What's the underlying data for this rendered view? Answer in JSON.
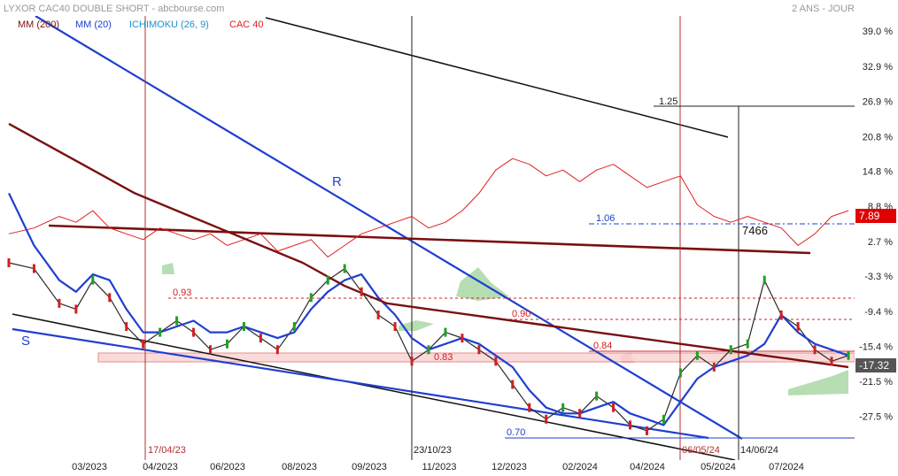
{
  "header": {
    "title": "LYXOR CAC40 DOUBLE SHORT - abcbourse.com",
    "period": "2 ANS - JOUR",
    "legend": [
      {
        "label": "MM (200)",
        "color": "#7a1010"
      },
      {
        "label": "MM (20)",
        "color": "#1f3fd0"
      },
      {
        "label": "ICHIMOKU (26, 9)",
        "color": "#1f8fd0"
      },
      {
        "label": "CAC 40",
        "color": "#e02020"
      }
    ]
  },
  "badges": {
    "cac": {
      "text": "7.89",
      "color": "#e00000"
    },
    "etf": {
      "text": "-17.32",
      "color": "#555555"
    }
  },
  "annotations": {
    "R": "R",
    "S": "S",
    "cac_value": "7466",
    "fib_125": "1.25",
    "fib_106": "1.06",
    "fib_093": "0.93",
    "fib_090": "0.90",
    "fib_084": "0.84",
    "fib_083": "0.83",
    "fib_070": "0.70"
  },
  "vlines": [
    {
      "label": "17/04/23",
      "color": "#b03030"
    },
    {
      "label": "23/10/23",
      "color": "#222222"
    },
    {
      "label": "06/05/24",
      "color": "#b03030"
    },
    {
      "label": "14/06/24",
      "color": "#222222"
    }
  ],
  "chart_data": {
    "type": "line",
    "title": "LYXOR CAC40 DOUBLE SHORT",
    "x_ticks": [
      "03/2023",
      "04/2023",
      "06/2023",
      "08/2023",
      "09/2023",
      "11/2023",
      "12/2023",
      "02/2024",
      "04/2024",
      "05/2024",
      "07/2024"
    ],
    "y_ticks": [
      "39.0 %",
      "32.9 %",
      "26.9 %",
      "20.8 %",
      "14.8 %",
      "8.8 %",
      "2.7 %",
      "-3.3 %",
      "-9.4 %",
      "-15.4 %",
      "-21.5 %",
      "-27.5 %"
    ],
    "y_range": [
      -32,
      41
    ],
    "series": [
      {
        "name": "CAC 40",
        "color": "#e02020",
        "x": [
          0,
          3,
          6,
          8,
          10,
          12,
          14,
          16,
          18,
          20,
          22,
          24,
          26,
          28,
          30,
          32,
          34,
          36,
          38,
          40,
          42,
          44,
          46,
          48,
          50,
          52,
          54,
          56,
          58,
          60,
          62,
          64,
          66,
          68,
          70,
          72,
          74,
          76,
          78,
          80,
          82,
          84,
          86,
          88,
          90,
          92,
          94,
          96,
          98,
          100
        ],
        "y": [
          4,
          5,
          7,
          6,
          8,
          5,
          4,
          3,
          5,
          4,
          3,
          4,
          2,
          3,
          4,
          1,
          2,
          3,
          0,
          2,
          4,
          5,
          6,
          7,
          5,
          6,
          8,
          11,
          15,
          17,
          16,
          14,
          15,
          13,
          15,
          16,
          14,
          12,
          13,
          14,
          9,
          7,
          6,
          7,
          6,
          5,
          2,
          4,
          7,
          8
        ]
      },
      {
        "name": "LYXOR CAC40 DOUBLE SHORT",
        "color": "#2a2a2a",
        "x": [
          0,
          3,
          6,
          8,
          10,
          12,
          14,
          16,
          18,
          20,
          22,
          24,
          26,
          28,
          30,
          32,
          34,
          36,
          38,
          40,
          42,
          44,
          46,
          48,
          50,
          52,
          54,
          56,
          58,
          60,
          62,
          64,
          66,
          68,
          70,
          72,
          74,
          76,
          78,
          80,
          82,
          84,
          86,
          88,
          90,
          92,
          94,
          96,
          98,
          100
        ],
        "y": [
          -1,
          -2,
          -8,
          -9,
          -4,
          -7,
          -12,
          -15,
          -13,
          -11,
          -13,
          -16,
          -15,
          -12,
          -14,
          -16,
          -12,
          -7,
          -4,
          -2,
          -6,
          -10,
          -12,
          -18,
          -16,
          -13,
          -14,
          -16,
          -18,
          -22,
          -26,
          -28,
          -26,
          -27,
          -24,
          -26,
          -29,
          -30,
          -28,
          -20,
          -17,
          -19,
          -16,
          -15,
          -4,
          -10,
          -12,
          -16,
          -18,
          -17
        ]
      },
      {
        "name": "MM (20)",
        "color": "#1f3fd0",
        "x": [
          0,
          3,
          6,
          8,
          10,
          12,
          14,
          16,
          18,
          20,
          22,
          24,
          26,
          28,
          30,
          32,
          34,
          36,
          38,
          40,
          42,
          44,
          46,
          48,
          50,
          52,
          54,
          56,
          58,
          60,
          62,
          64,
          66,
          68,
          70,
          72,
          74,
          76,
          78,
          80,
          82,
          84,
          86,
          88,
          90,
          92,
          94,
          96,
          98,
          100
        ],
        "y": [
          11,
          2,
          -4,
          -6,
          -3,
          -4,
          -9,
          -13,
          -13,
          -12,
          -11,
          -13,
          -13,
          -12,
          -13,
          -14,
          -13,
          -9,
          -6,
          -4,
          -3,
          -7,
          -10,
          -14,
          -16,
          -15,
          -14,
          -15,
          -17,
          -19,
          -23,
          -26,
          -27,
          -27,
          -26,
          -25,
          -27,
          -28,
          -29,
          -25,
          -21,
          -19,
          -18,
          -17,
          -15,
          -10,
          -13,
          -15,
          -16,
          -17
        ]
      },
      {
        "name": "MM (200)",
        "color": "#7a1010",
        "x": [
          0,
          5,
          10,
          15,
          20,
          25,
          30,
          35,
          40,
          45,
          50,
          55,
          60,
          65,
          70,
          75,
          80,
          85,
          90,
          95,
          100
        ],
        "y": [
          23,
          19,
          15,
          11,
          8,
          5,
          2,
          -1,
          -5,
          -8,
          -9,
          -10,
          -11,
          -12,
          -13,
          -14,
          -15,
          -16,
          -17,
          -18,
          -19
        ]
      }
    ]
  }
}
